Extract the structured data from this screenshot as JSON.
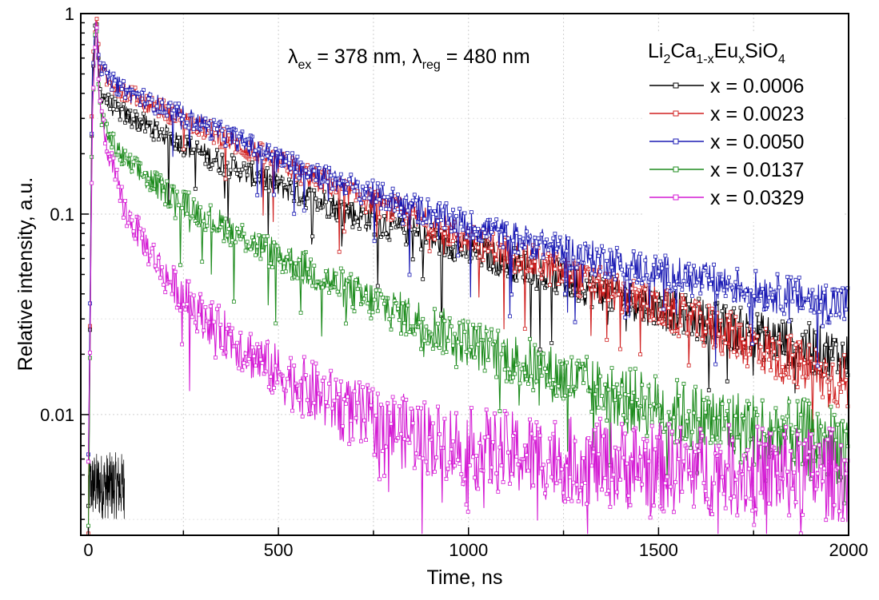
{
  "chart_data": {
    "type": "line",
    "xlabel": "Time, ns",
    "ylabel": "Relative intensity, a.u.",
    "xlim": [
      -20,
      2000
    ],
    "ylim": [
      0.0025,
      1
    ],
    "yscale": "log",
    "grid": true,
    "x_ticks": [
      0,
      500,
      1000,
      1500,
      2000
    ],
    "x_tick_labels": [
      "0",
      "500",
      "1000",
      "1500",
      "2000"
    ],
    "y_ticks": [
      1,
      0.1,
      0.01
    ],
    "y_tick_labels": [
      "1",
      "0.1",
      "0.01"
    ],
    "annotation": {
      "lambda_symbol": "λ",
      "ex_sub": "ex",
      "ex_value": " = 378 nm, ",
      "reg_sub": "reg",
      "reg_value": " = 480 nm"
    },
    "legend": {
      "title_parts": [
        "Li",
        "2",
        "Ca",
        "1-x",
        "Eu",
        "x",
        "SiO",
        "4"
      ],
      "position": "top-right"
    },
    "series": [
      {
        "name": "x = 0.0006",
        "color": "#000000",
        "x": [
          0,
          10,
          20,
          30,
          50,
          100,
          200,
          300,
          400,
          500,
          700,
          1000,
          1300,
          1600,
          2000
        ],
        "y": [
          0.004,
          0.45,
          0.95,
          0.42,
          0.36,
          0.31,
          0.25,
          0.2,
          0.165,
          0.14,
          0.1,
          0.066,
          0.044,
          0.03,
          0.019
        ]
      },
      {
        "name": "x = 0.0023",
        "color": "#d02020",
        "x": [
          0,
          10,
          20,
          30,
          50,
          100,
          200,
          300,
          400,
          500,
          700,
          1000,
          1300,
          1600,
          2000
        ],
        "y": [
          0.004,
          0.5,
          0.96,
          0.55,
          0.47,
          0.4,
          0.33,
          0.27,
          0.22,
          0.18,
          0.125,
          0.075,
          0.047,
          0.029,
          0.014
        ]
      },
      {
        "name": "x = 0.0050",
        "color": "#1a1ab4",
        "x": [
          0,
          10,
          20,
          30,
          50,
          100,
          200,
          300,
          400,
          500,
          700,
          1000,
          1300,
          1600,
          2000
        ],
        "y": [
          0.004,
          0.5,
          0.97,
          0.55,
          0.48,
          0.41,
          0.34,
          0.28,
          0.23,
          0.19,
          0.135,
          0.088,
          0.062,
          0.047,
          0.035
        ]
      },
      {
        "name": "x = 0.0137",
        "color": "#1e8c1e",
        "x": [
          0,
          10,
          20,
          30,
          50,
          100,
          200,
          300,
          400,
          500,
          700,
          1000,
          1300,
          1600,
          2000
        ],
        "y": [
          0.003,
          0.3,
          0.95,
          0.33,
          0.25,
          0.18,
          0.13,
          0.1,
          0.078,
          0.062,
          0.04,
          0.023,
          0.014,
          0.0095,
          0.007
        ]
      },
      {
        "name": "x = 0.0329",
        "color": "#d41ad4",
        "x": [
          0,
          10,
          20,
          30,
          50,
          100,
          200,
          300,
          400,
          500,
          700,
          800,
          1000,
          1300,
          1600,
          2000
        ],
        "y": [
          0.003,
          0.25,
          0.97,
          0.35,
          0.21,
          0.1,
          0.05,
          0.031,
          0.022,
          0.016,
          0.01,
          0.0085,
          0.0068,
          0.0058,
          0.0053,
          0.005
        ]
      }
    ],
    "baseline_noise": {
      "name": "pre-pulse noise",
      "color": "#000000",
      "x_range": [
        0,
        95
      ],
      "y_range": [
        0.003,
        0.0065
      ]
    }
  }
}
